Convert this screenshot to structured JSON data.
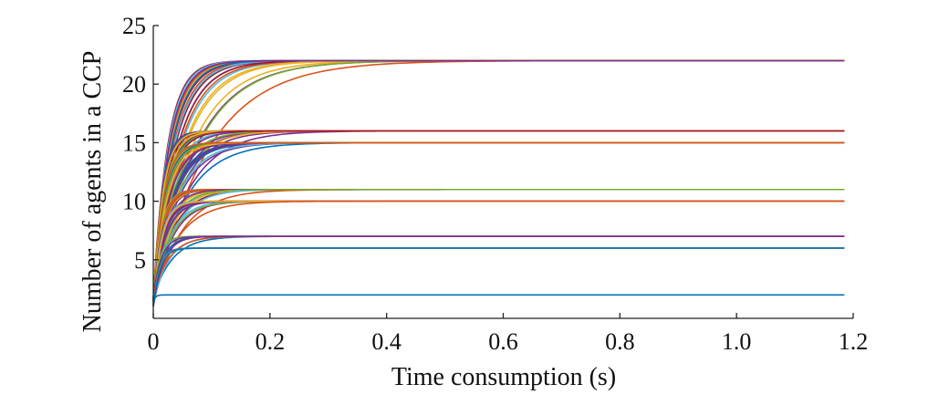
{
  "chart_data": {
    "type": "line",
    "title": "",
    "xlabel": "Time consumption (s)",
    "ylabel": "Number of agents in a CCP",
    "xlim": [
      0,
      1.2
    ],
    "ylim": [
      0,
      25
    ],
    "xticks": [
      0,
      0.2,
      0.4,
      0.6,
      0.8,
      1.0,
      1.2
    ],
    "xtick_labels": [
      "0",
      "0.2",
      "0.4",
      "0.6",
      "0.8",
      "1.0",
      "1.2"
    ],
    "yticks": [
      5,
      10,
      15,
      20,
      25
    ],
    "ytick_labels": [
      "5",
      "10",
      "15",
      "20",
      "25"
    ],
    "grid": false,
    "legend": "none",
    "x_end": 1.185,
    "start_value": 1,
    "palette": [
      "#0072bd",
      "#d95319",
      "#edb120",
      "#7e2f8e",
      "#77ac30",
      "#4dbeee",
      "#a2142f"
    ],
    "groups": [
      {
        "level": 22,
        "count": 24,
        "rate_min": 10,
        "rate_max": 45,
        "color": "#4dbeee"
      },
      {
        "level": 16,
        "count": 26,
        "rate_min": 10,
        "rate_max": 70,
        "color": "#edb120"
      },
      {
        "level": 15,
        "count": 22,
        "rate_min": 12,
        "rate_max": 65,
        "color": "#d95319"
      },
      {
        "level": 11,
        "count": 20,
        "rate_min": 15,
        "rate_max": 80,
        "color": "#77ac30"
      },
      {
        "level": 10,
        "count": 14,
        "rate_min": 20,
        "rate_max": 85,
        "color": "#7e2f8e"
      },
      {
        "level": 7,
        "count": 10,
        "rate_min": 30,
        "rate_max": 95,
        "color": "#d95319"
      },
      {
        "level": 6,
        "count": 4,
        "rate_min": 50,
        "rate_max": 100,
        "color": "#0072bd"
      },
      {
        "level": 2,
        "count": 1,
        "rate_min": 300,
        "rate_max": 300,
        "color": "#0072bd"
      }
    ]
  }
}
